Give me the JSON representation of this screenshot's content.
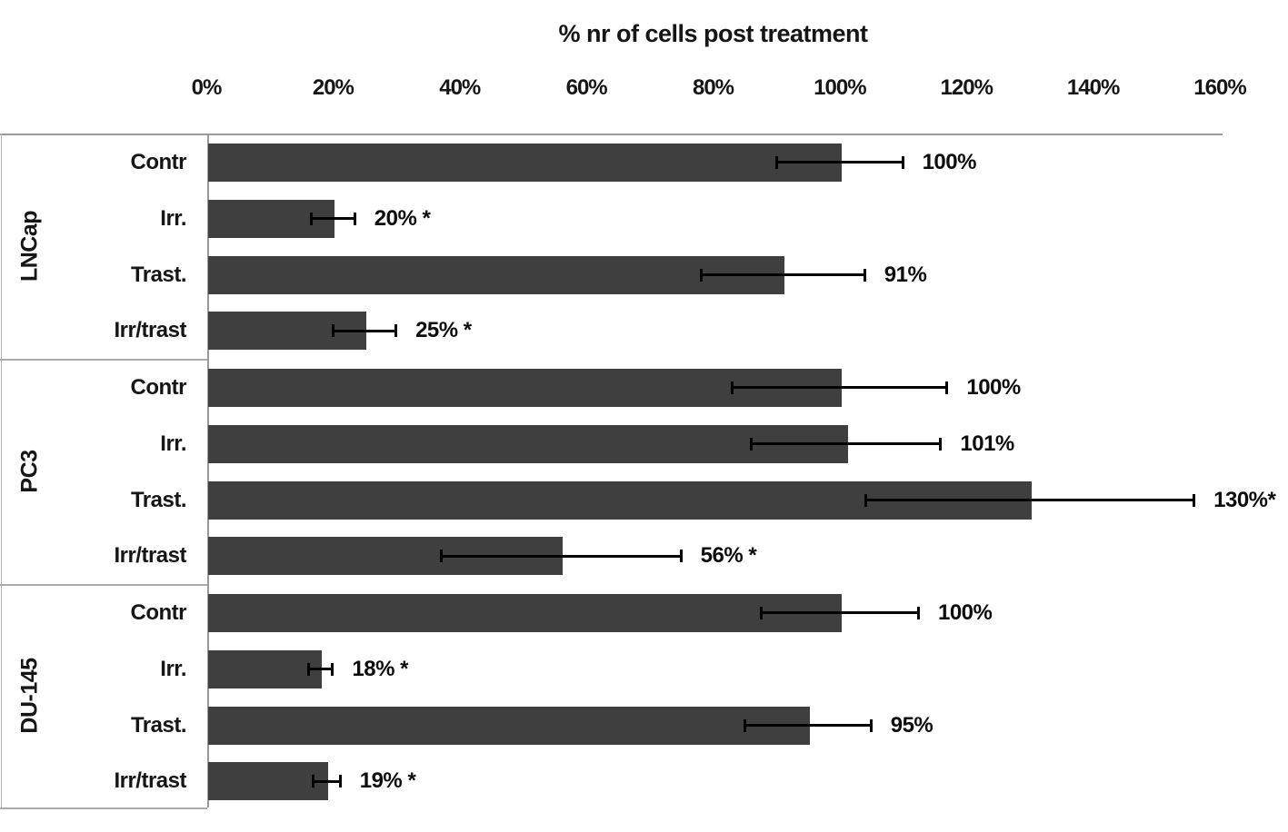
{
  "chart_data": {
    "type": "bar",
    "orientation": "horizontal",
    "title": "% nr of cells post treatment",
    "xlabel": "",
    "ylabel": "",
    "xlim": [
      0,
      160
    ],
    "x_tick_labels": [
      "0%",
      "20%",
      "40%",
      "60%",
      "80%",
      "100%",
      "120%",
      "140%",
      "160%"
    ],
    "x_tick_values": [
      0,
      20,
      40,
      60,
      80,
      100,
      120,
      140,
      160
    ],
    "grid": "off",
    "legend": "none",
    "bar_color": "#3f3f3f",
    "error_bar_color": "#000000",
    "axis_line_color": "#9a9a9a",
    "groups": [
      {
        "name": "LNCap",
        "rows": [
          {
            "category": "Contr",
            "value": 100,
            "error": 10,
            "label": "100%"
          },
          {
            "category": "Irr.",
            "value": 20,
            "error": 3.5,
            "label": "20% *"
          },
          {
            "category": "Trast.",
            "value": 91,
            "error": 13,
            "label": "91%"
          },
          {
            "category": "Irr/trast",
            "value": 25,
            "error": 5,
            "label": "25% *"
          }
        ]
      },
      {
        "name": "PC3",
        "rows": [
          {
            "category": "Contr",
            "value": 100,
            "error": 17,
            "label": "100%"
          },
          {
            "category": "Irr.",
            "value": 101,
            "error": 15,
            "label": "101%"
          },
          {
            "category": "Trast.",
            "value": 130,
            "error": 26,
            "label": "130%*"
          },
          {
            "category": "Irr/trast",
            "value": 56,
            "error": 19,
            "label": "56% *"
          }
        ]
      },
      {
        "name": "DU-145",
        "rows": [
          {
            "category": "Contr",
            "value": 100,
            "error": 12.5,
            "label": "100%"
          },
          {
            "category": "Irr.",
            "value": 18,
            "error": 2,
            "label": "18% *"
          },
          {
            "category": "Trast.",
            "value": 95,
            "error": 10,
            "label": "95%"
          },
          {
            "category": "Irr/trast",
            "value": 19,
            "error": 2.2,
            "label": "19% *"
          }
        ]
      }
    ]
  }
}
